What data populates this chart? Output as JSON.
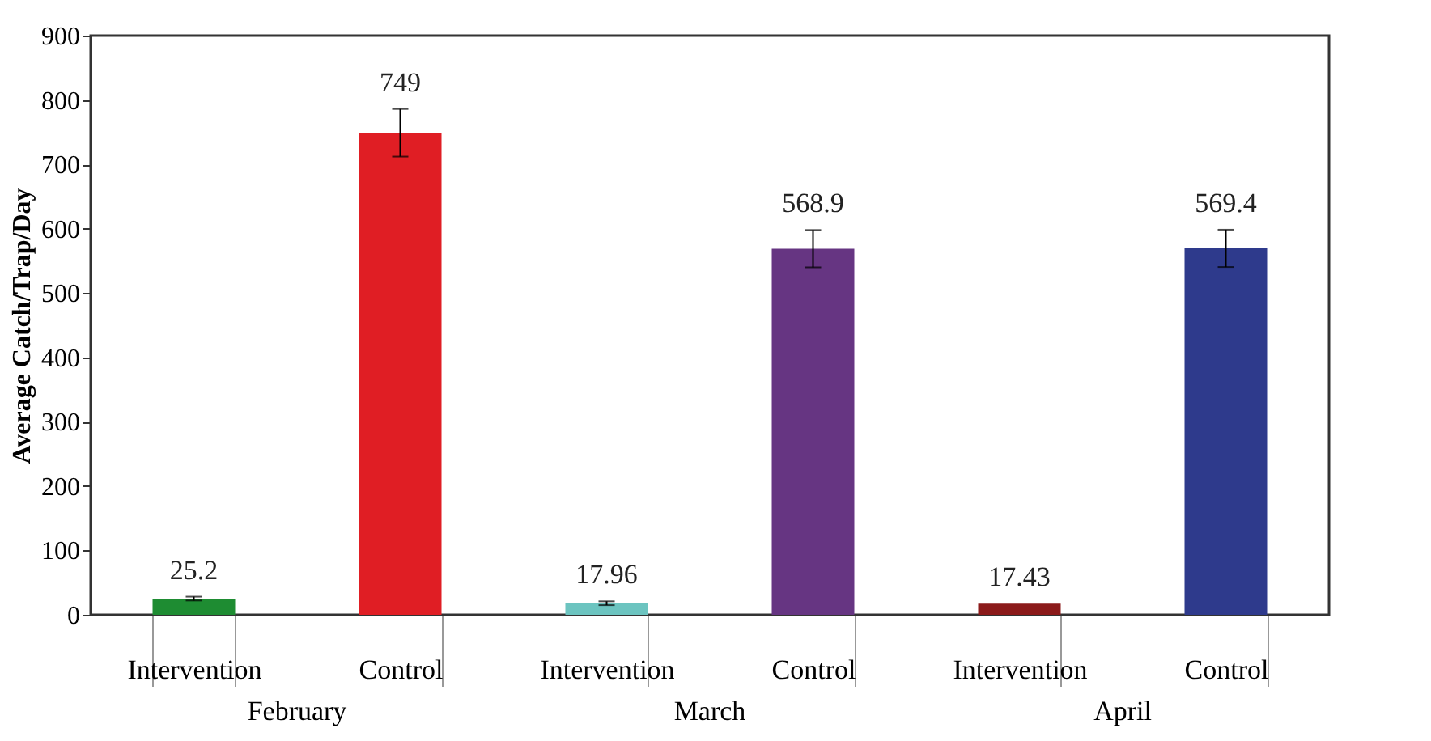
{
  "chart_data": {
    "type": "bar",
    "ylabel": "Average Catch/Trap/Day",
    "categories": [
      "Intervention",
      "Control",
      "Intervention",
      "Control",
      "Intervention",
      "Control"
    ],
    "values": [
      25.2,
      749,
      17.96,
      568.9,
      17.43,
      569.4
    ],
    "colors": [
      "#1e8c32",
      "#e01e24",
      "#6cc4c0",
      "#663582",
      "#8b1a1a",
      "#2e3a8c"
    ],
    "errors": [
      3,
      37,
      3,
      29,
      null,
      29
    ],
    "data_labels": true,
    "annotations": [
      "February",
      "March",
      "April"
    ],
    "ylim": [
      0,
      900
    ],
    "yticks": [
      0,
      100,
      200,
      300,
      400,
      500,
      600,
      700,
      800,
      900
    ],
    "grid": false,
    "legend": false
  }
}
